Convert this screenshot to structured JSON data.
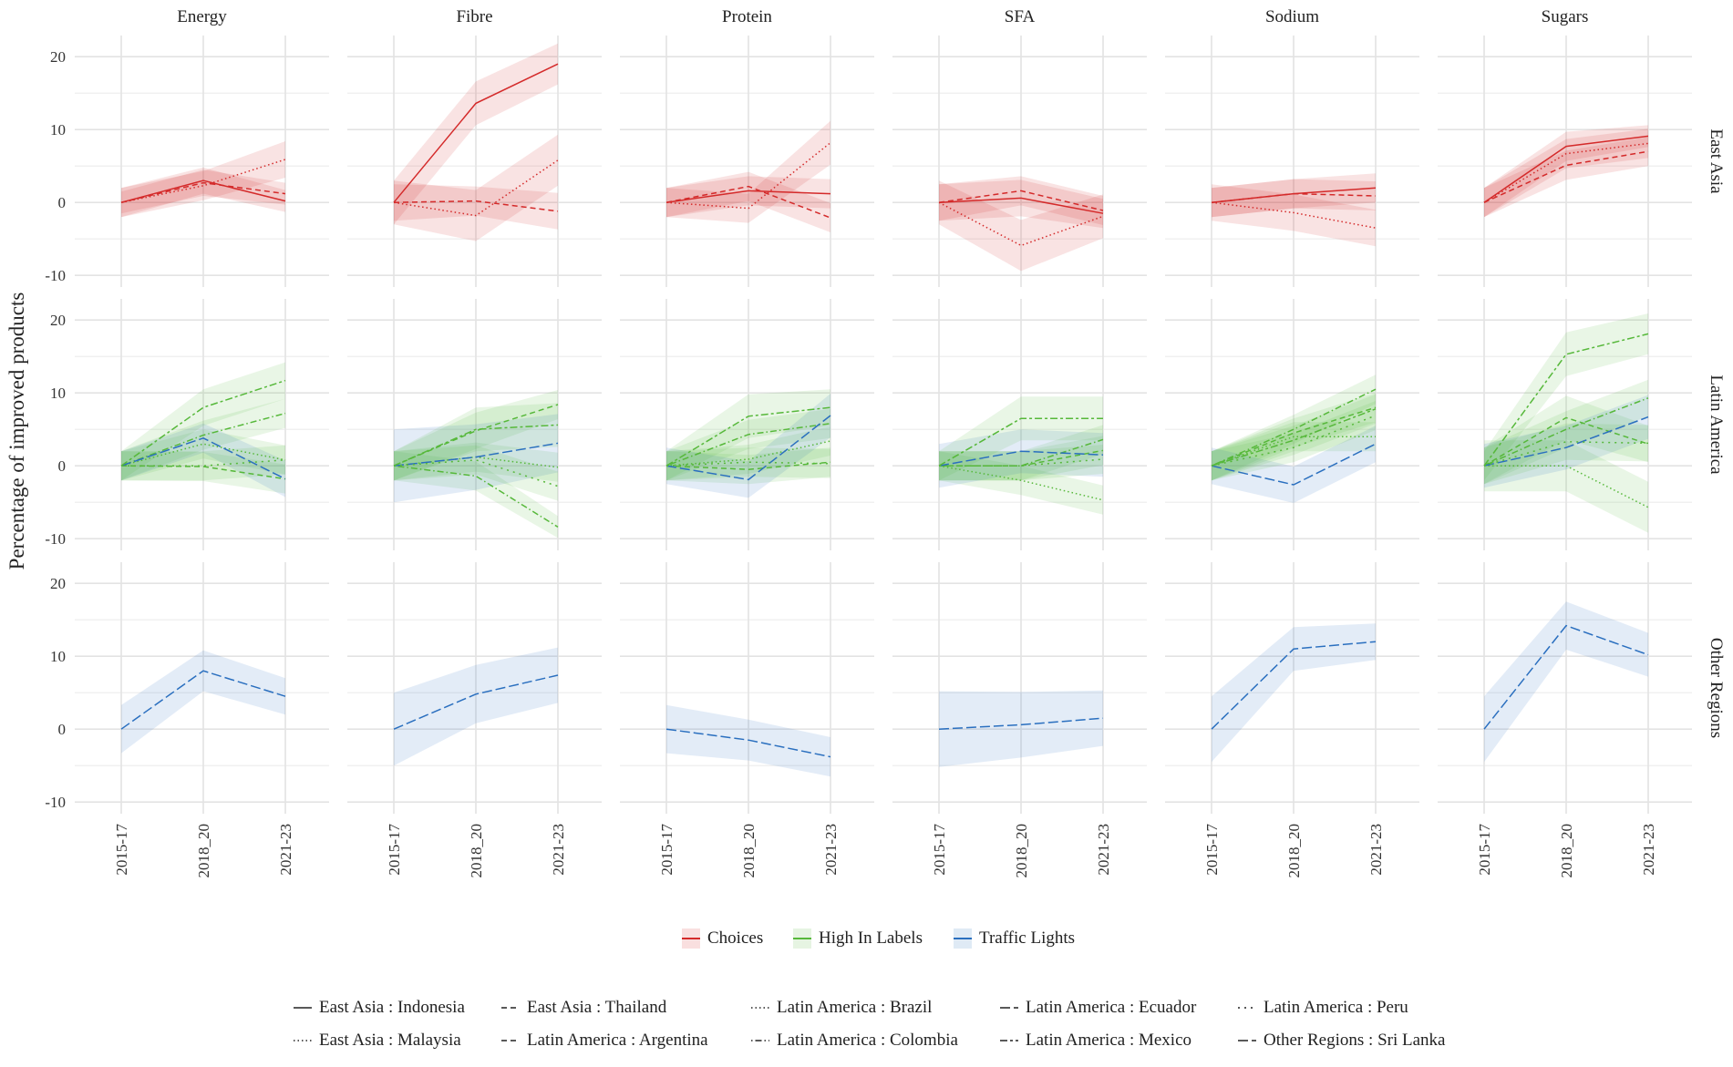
{
  "chart_data": {
    "type": "line",
    "ylabel": "Percentage of improved products",
    "xlabel": "",
    "ylim": [
      -11.6,
      22.9
    ],
    "yticks": [
      "-10",
      "0",
      "10",
      "20"
    ],
    "ytick_values": [
      -10,
      0,
      10,
      20
    ],
    "x": [
      "2015-17",
      "2018_20",
      "2021-23"
    ],
    "columns": [
      "Energy",
      "Fibre",
      "Protein",
      "SFA",
      "Sodium",
      "Sugars"
    ],
    "rows": [
      "East Asia",
      "Latin America",
      "Other Regions"
    ],
    "grid": true,
    "colors": {
      "Choices": "#d42a2a",
      "High In Labels": "#56b83a",
      "Traffic Lights": "#2a6fbf"
    },
    "color_legend": [
      "Choices",
      "High In Labels",
      "Traffic Lights"
    ],
    "color_legend_placement": "bottom",
    "linetype_legend_placement": "bottom",
    "series": [
      {
        "name": "East Asia : Indonesia",
        "row": "East Asia",
        "scheme": "Choices",
        "linetype": "solid",
        "panels": {
          "Energy": [
            [
              0,
              3,
              0.2
            ],
            [
              2,
              1.8,
              1.5
            ]
          ],
          "Fibre": [
            [
              0,
              13.6,
              19
            ],
            [
              3,
              3,
              2.8
            ]
          ],
          "Protein": [
            [
              0,
              1.6,
              1.2
            ],
            [
              2,
              2,
              2
            ]
          ],
          "SFA": [
            [
              0,
              0.6,
              -1.5
            ],
            [
              2.5,
              2.5,
              2
            ]
          ],
          "Sodium": [
            [
              0,
              1.2,
              2
            ],
            [
              2,
              2,
              2
            ]
          ],
          "Sugars": [
            [
              0,
              7.7,
              9.1
            ],
            [
              2,
              2,
              1.5
            ]
          ]
        }
      },
      {
        "name": "East Asia : Malaysia",
        "row": "East Asia",
        "scheme": "Choices",
        "linetype": "dotted",
        "panels": {
          "Energy": [
            [
              0,
              2.3,
              5.9
            ],
            [
              2,
              2,
              2.5
            ]
          ],
          "Fibre": [
            [
              0,
              -1.8,
              5.8
            ],
            [
              3,
              3.5,
              3.5
            ]
          ],
          "Protein": [
            [
              0,
              -0.8,
              8.2
            ],
            [
              2,
              2,
              3
            ]
          ],
          "SFA": [
            [
              0,
              -5.9,
              -1.9
            ],
            [
              3,
              3.5,
              3
            ]
          ],
          "Sodium": [
            [
              0,
              -1.4,
              -3.5
            ],
            [
              2.5,
              2.5,
              2.5
            ]
          ],
          "Sugars": [
            [
              0,
              6.7,
              8.1
            ],
            [
              2,
              2,
              2
            ]
          ]
        }
      },
      {
        "name": "East Asia : Thailand",
        "row": "East Asia",
        "scheme": "Choices",
        "linetype": "dashed",
        "panels": {
          "Energy": [
            [
              0,
              2.7,
              1.2
            ],
            [
              1.5,
              1.8,
              1.5
            ]
          ],
          "Fibre": [
            [
              0,
              0.2,
              -1.2
            ],
            [
              2.5,
              2,
              2.5
            ]
          ],
          "Protein": [
            [
              0,
              2.2,
              -2.1
            ],
            [
              2,
              2,
              2
            ]
          ],
          "SFA": [
            [
              0,
              1.6,
              -1.1
            ],
            [
              2.5,
              2,
              2
            ]
          ],
          "Sodium": [
            [
              0,
              1.2,
              0.9
            ],
            [
              2,
              2,
              2
            ]
          ],
          "Sugars": [
            [
              0,
              5.1,
              7.0
            ],
            [
              2,
              2,
              2
            ]
          ]
        }
      },
      {
        "name": "Latin America : Argentina",
        "row": "Latin America",
        "scheme": "High In Labels",
        "linetype": "dashed",
        "panels": {
          "Energy": [
            [
              0,
              -0.1,
              -1.8
            ],
            [
              2,
              2,
              2
            ]
          ],
          "Fibre": [
            [
              0,
              4.8,
              8.4
            ],
            [
              2,
              2.5,
              2
            ]
          ],
          "Protein": [
            [
              0,
              -0.5,
              0.5
            ],
            [
              2,
              2,
              2
            ]
          ],
          "SFA": [
            [
              0,
              0,
              2.1
            ],
            [
              2,
              2,
              2
            ]
          ],
          "Sodium": [
            [
              0,
              4.5,
              8
            ],
            [
              2,
              2,
              2
            ]
          ],
          "Sugars": [
            [
              0,
              6.6,
              3
            ],
            [
              2.5,
              3,
              2.5
            ]
          ]
        }
      },
      {
        "name": "Latin America : Brazil",
        "row": "Latin America",
        "scheme": "High In Labels",
        "linetype": "dotted",
        "panels": {
          "Energy": [
            [
              0,
              3,
              0.8
            ],
            [
              2,
              2,
              2
            ]
          ],
          "Fibre": [
            [
              0,
              1.2,
              -0.2
            ],
            [
              2,
              2,
              2
            ]
          ],
          "Protein": [
            [
              0,
              0.9,
              3.4
            ],
            [
              2,
              2,
              2
            ]
          ],
          "SFA": [
            [
              0,
              -2,
              -4.7
            ],
            [
              2,
              2,
              2
            ]
          ],
          "Sodium": [
            [
              0,
              4,
              4
            ],
            [
              2,
              2,
              2
            ]
          ],
          "Sugars": [
            [
              0,
              0,
              -5.7
            ],
            [
              3.5,
              3.5,
              3.5
            ]
          ]
        }
      },
      {
        "name": "Latin America : Colombia",
        "row": "Latin America",
        "scheme": "High In Labels",
        "linetype": "dotdash",
        "panels": {
          "Energy": [
            [
              0,
              4.2,
              7.2
            ],
            [
              2,
              2,
              2
            ]
          ],
          "Fibre": [
            [
              0,
              -1.4,
              -8.4
            ],
            [
              2,
              2,
              1.5
            ]
          ],
          "Protein": [
            [
              0,
              4.3,
              5.8
            ],
            [
              2,
              2,
              2
            ]
          ],
          "SFA": [
            [
              0,
              0,
              3.6
            ],
            [
              2,
              2,
              2
            ]
          ],
          "Sodium": [
            [
              0,
              5,
              10.5
            ],
            [
              2,
              2,
              2
            ]
          ],
          "Sugars": [
            [
              0,
              5,
              9.3
            ],
            [
              2.5,
              2.5,
              2.5
            ]
          ]
        }
      },
      {
        "name": "Latin America : Ecuador",
        "row": "Latin America",
        "scheme": "Traffic Lights",
        "linetype": "longdash",
        "panels": {
          "Energy": [
            [
              0,
              3.8,
              -1.8
            ],
            [
              2,
              2,
              2.5
            ]
          ],
          "Fibre": [
            [
              0,
              1.2,
              3.1
            ],
            [
              5,
              4.5,
              4
            ]
          ],
          "Protein": [
            [
              0,
              -1.9,
              6.9
            ],
            [
              2.5,
              2.5,
              3
            ]
          ],
          "SFA": [
            [
              0,
              2,
              1.5
            ],
            [
              3,
              3,
              3
            ]
          ],
          "Sodium": [
            [
              0,
              -2.6,
              3
            ],
            [
              2.5,
              2.5,
              2.5
            ]
          ],
          "Sugars": [
            [
              0,
              2.5,
              6.7
            ],
            [
              3,
              3,
              3
            ]
          ]
        }
      },
      {
        "name": "Latin America : Mexico",
        "row": "Latin America",
        "scheme": "High In Labels",
        "linetype": "twodash",
        "panels": {
          "Energy": [
            [
              0,
              8,
              11.7
            ],
            [
              2,
              2.5,
              2.5
            ]
          ],
          "Fibre": [
            [
              0,
              5,
              5.6
            ],
            [
              2,
              3,
              3
            ]
          ],
          "Protein": [
            [
              0,
              6.8,
              8
            ],
            [
              2,
              3,
              2.5
            ]
          ],
          "SFA": [
            [
              0,
              6.5,
              6.5
            ],
            [
              2,
              3,
              3
            ]
          ],
          "Sodium": [
            [
              0,
              3.5,
              7.8
            ],
            [
              2,
              2,
              2
            ]
          ],
          "Sugars": [
            [
              0,
              15.3,
              18.1
            ],
            [
              2,
              3,
              2.8
            ]
          ]
        }
      },
      {
        "name": "Latin America : Peru",
        "row": "Latin America",
        "scheme": "High In Labels",
        "linetype": "dotted2",
        "panels": {
          "Energy": [
            [
              0,
              0,
              0.8
            ],
            [
              2,
              2,
              2
            ]
          ],
          "Fibre": [
            [
              0,
              0.8,
              -2.8
            ],
            [
              2,
              2,
              2
            ]
          ],
          "Protein": [
            [
              0,
              0.5,
              0.3
            ],
            [
              2,
              2,
              2
            ]
          ],
          "SFA": [
            [
              0,
              0,
              0.9
            ],
            [
              2,
              2,
              2
            ]
          ],
          "Sodium": [
            [
              0,
              2.5,
              6.9
            ],
            [
              2,
              2,
              2
            ]
          ],
          "Sugars": [
            [
              0,
              3.3,
              3.1
            ],
            [
              2.5,
              2.5,
              2.5
            ]
          ]
        }
      },
      {
        "name": "Other Regions : Sri Lanka",
        "row": "Other Regions",
        "scheme": "Traffic Lights",
        "linetype": "longdash",
        "panels": {
          "Energy": [
            [
              0,
              8,
              4.5
            ],
            [
              3.3,
              2.8,
              2.5
            ]
          ],
          "Fibre": [
            [
              0,
              4.8,
              7.4
            ],
            [
              5,
              4,
              3.8
            ]
          ],
          "Protein": [
            [
              0,
              -1.5,
              -3.8
            ],
            [
              3.3,
              2.8,
              2.7
            ]
          ],
          "SFA": [
            [
              0,
              0.6,
              1.5
            ],
            [
              5.2,
              4.5,
              3.8
            ]
          ],
          "Sodium": [
            [
              0,
              11,
              12
            ],
            [
              4.5,
              3,
              2.5
            ]
          ],
          "Sugars": [
            [
              0,
              14.2,
              10.2
            ],
            [
              4.5,
              3.3,
              3
            ]
          ]
        }
      }
    ],
    "linetype_legend": [
      "East Asia : Indonesia",
      "East Asia : Thailand",
      "Latin America : Brazil",
      "Latin America : Ecuador",
      "Latin America : Peru",
      "East Asia : Malaysia",
      "Latin America : Argentina",
      "Latin America : Colombia",
      "Latin America : Mexico",
      "Other Regions : Sri Lanka"
    ]
  }
}
